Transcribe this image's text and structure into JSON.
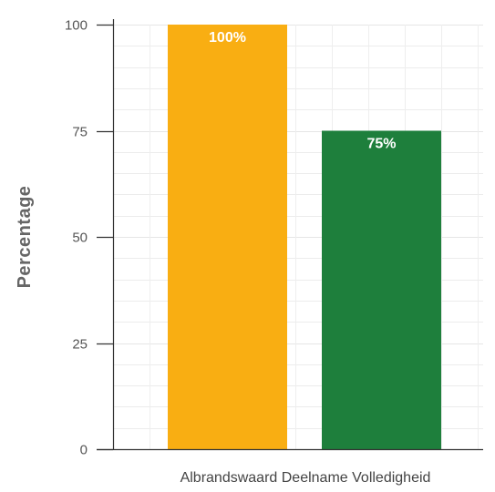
{
  "chart_data": {
    "type": "bar",
    "categories": [
      "Albrandswaard Deelname Volledigheid"
    ],
    "series": [
      {
        "values": [
          100
        ],
        "color": "#F9AE12",
        "data_label": "100%"
      },
      {
        "values": [
          75
        ],
        "color": "#1E7F3C",
        "data_label": "75%"
      }
    ],
    "ylabel": "Percentage",
    "xlabel": "",
    "ylim": [
      0,
      100
    ],
    "yticks": [
      0,
      25,
      50,
      75,
      100
    ],
    "ytick_labels": [
      "0",
      "25",
      "50",
      "75",
      "100"
    ],
    "grid": true,
    "grid_color": "#e6e6e6",
    "axis_color": "#333333"
  }
}
